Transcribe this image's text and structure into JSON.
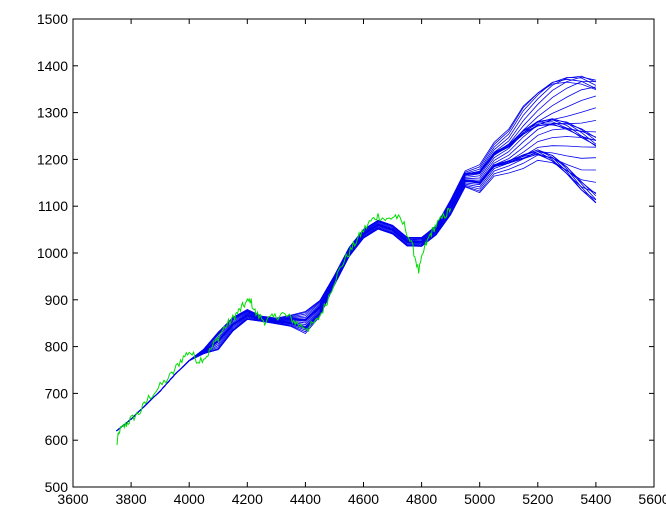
{
  "chart_data": {
    "type": "line",
    "title": "",
    "xlabel": "",
    "ylabel": "",
    "xlim": [
      3600,
      5600
    ],
    "ylim": [
      500,
      1500
    ],
    "xticks": [
      3600,
      3800,
      4000,
      4200,
      4400,
      4600,
      4800,
      5000,
      5200,
      5400,
      5600
    ],
    "yticks": [
      500,
      600,
      700,
      800,
      900,
      1000,
      1100,
      1200,
      1300,
      1400,
      1500
    ],
    "xtick_labels": [
      "3600",
      "3800",
      "4000",
      "4200",
      "4400",
      "4600",
      "4800",
      "5000",
      "5200",
      "5400",
      "5600"
    ],
    "ytick_labels": [
      "500",
      "600",
      "700",
      "800",
      "900",
      "1000",
      "1100",
      "1200",
      "1300",
      "1400",
      "1500"
    ],
    "grid": false,
    "series": [
      {
        "color": "#00dd00",
        "style": "noisy",
        "x": [
          3750,
          3760,
          3780,
          3800,
          3830,
          3860,
          3900,
          3940,
          3970,
          4000,
          4030,
          4060,
          4090,
          4120,
          4150,
          4170,
          4190,
          4210,
          4230,
          4260,
          4290,
          4320,
          4350,
          4380,
          4410,
          4440,
          4470,
          4500,
          4530,
          4560,
          4590,
          4620,
          4650,
          4680,
          4710,
          4740,
          4770,
          4790,
          4810,
          4830,
          4850,
          4880,
          4900
        ],
        "y": [
          590,
          620,
          632,
          645,
          660,
          690,
          715,
          740,
          770,
          790,
          770,
          780,
          810,
          840,
          860,
          875,
          890,
          900,
          870,
          855,
          862,
          870,
          860,
          845,
          840,
          855,
          890,
          940,
          980,
          1010,
          1040,
          1065,
          1080,
          1070,
          1080,
          1060,
          1010,
          960,
          1010,
          1040,
          1060,
          1080,
          1095
        ]
      },
      {
        "color": "#0000ee",
        "style": "fan",
        "fan_count": 30,
        "x": [
          3750,
          3800,
          3850,
          3900,
          3950,
          4000,
          4050,
          4100,
          4150,
          4200,
          4250,
          4300,
          4350,
          4400,
          4450,
          4500,
          4550,
          4600,
          4650,
          4700,
          4750,
          4800,
          4850,
          4900,
          4950,
          5000,
          5050,
          5100,
          5150,
          5200,
          5250,
          5300,
          5350,
          5400
        ],
        "y": [
          620,
          645,
          675,
          705,
          740,
          770,
          790,
          815,
          850,
          870,
          860,
          855,
          855,
          850,
          880,
          940,
          1000,
          1040,
          1060,
          1050,
          1025,
          1025,
          1050,
          1100,
          1160,
          1160,
          1200,
          1215,
          1240,
          1260,
          1265,
          1260,
          1250,
          1240
        ],
        "spread": [
          0,
          0,
          0,
          0,
          0,
          0,
          5,
          20,
          15,
          10,
          5,
          5,
          10,
          20,
          15,
          10,
          10,
          10,
          10,
          10,
          10,
          10,
          10,
          15,
          15,
          25,
          30,
          40,
          60,
          70,
          90,
          110,
          130,
          140
        ]
      }
    ]
  }
}
